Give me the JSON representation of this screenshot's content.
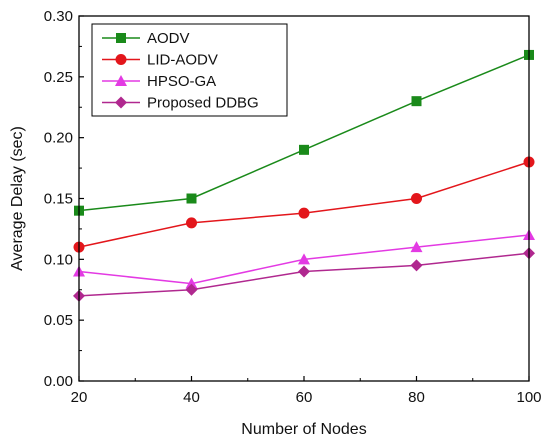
{
  "chart_data": {
    "type": "line",
    "x": [
      20,
      40,
      60,
      80,
      100
    ],
    "series": [
      {
        "name": "AODV",
        "values": [
          0.14,
          0.15,
          0.19,
          0.23,
          0.268
        ],
        "color": "#1a8a1a",
        "marker": "square"
      },
      {
        "name": "LID-AODV",
        "values": [
          0.11,
          0.13,
          0.138,
          0.15,
          0.18
        ],
        "color": "#e3161b",
        "marker": "circle"
      },
      {
        "name": "HPSO-GA",
        "values": [
          0.09,
          0.08,
          0.1,
          0.11,
          0.12
        ],
        "color": "#e33ae3",
        "marker": "triangle"
      },
      {
        "name": "Proposed DDBG",
        "values": [
          0.07,
          0.075,
          0.09,
          0.095,
          0.105
        ],
        "color": "#b0288f",
        "marker": "diamond"
      }
    ],
    "xlabel": "Number of Nodes",
    "ylabel": "Average Delay (sec)",
    "xlim": [
      20,
      100
    ],
    "ylim": [
      0.0,
      0.3
    ],
    "xticks": [
      "20",
      "40",
      "60",
      "80",
      "100"
    ],
    "yticks": [
      "0.00",
      "0.05",
      "0.10",
      "0.15",
      "0.20",
      "0.25",
      "0.30"
    ],
    "grid": false,
    "legend_position": "top-left"
  }
}
